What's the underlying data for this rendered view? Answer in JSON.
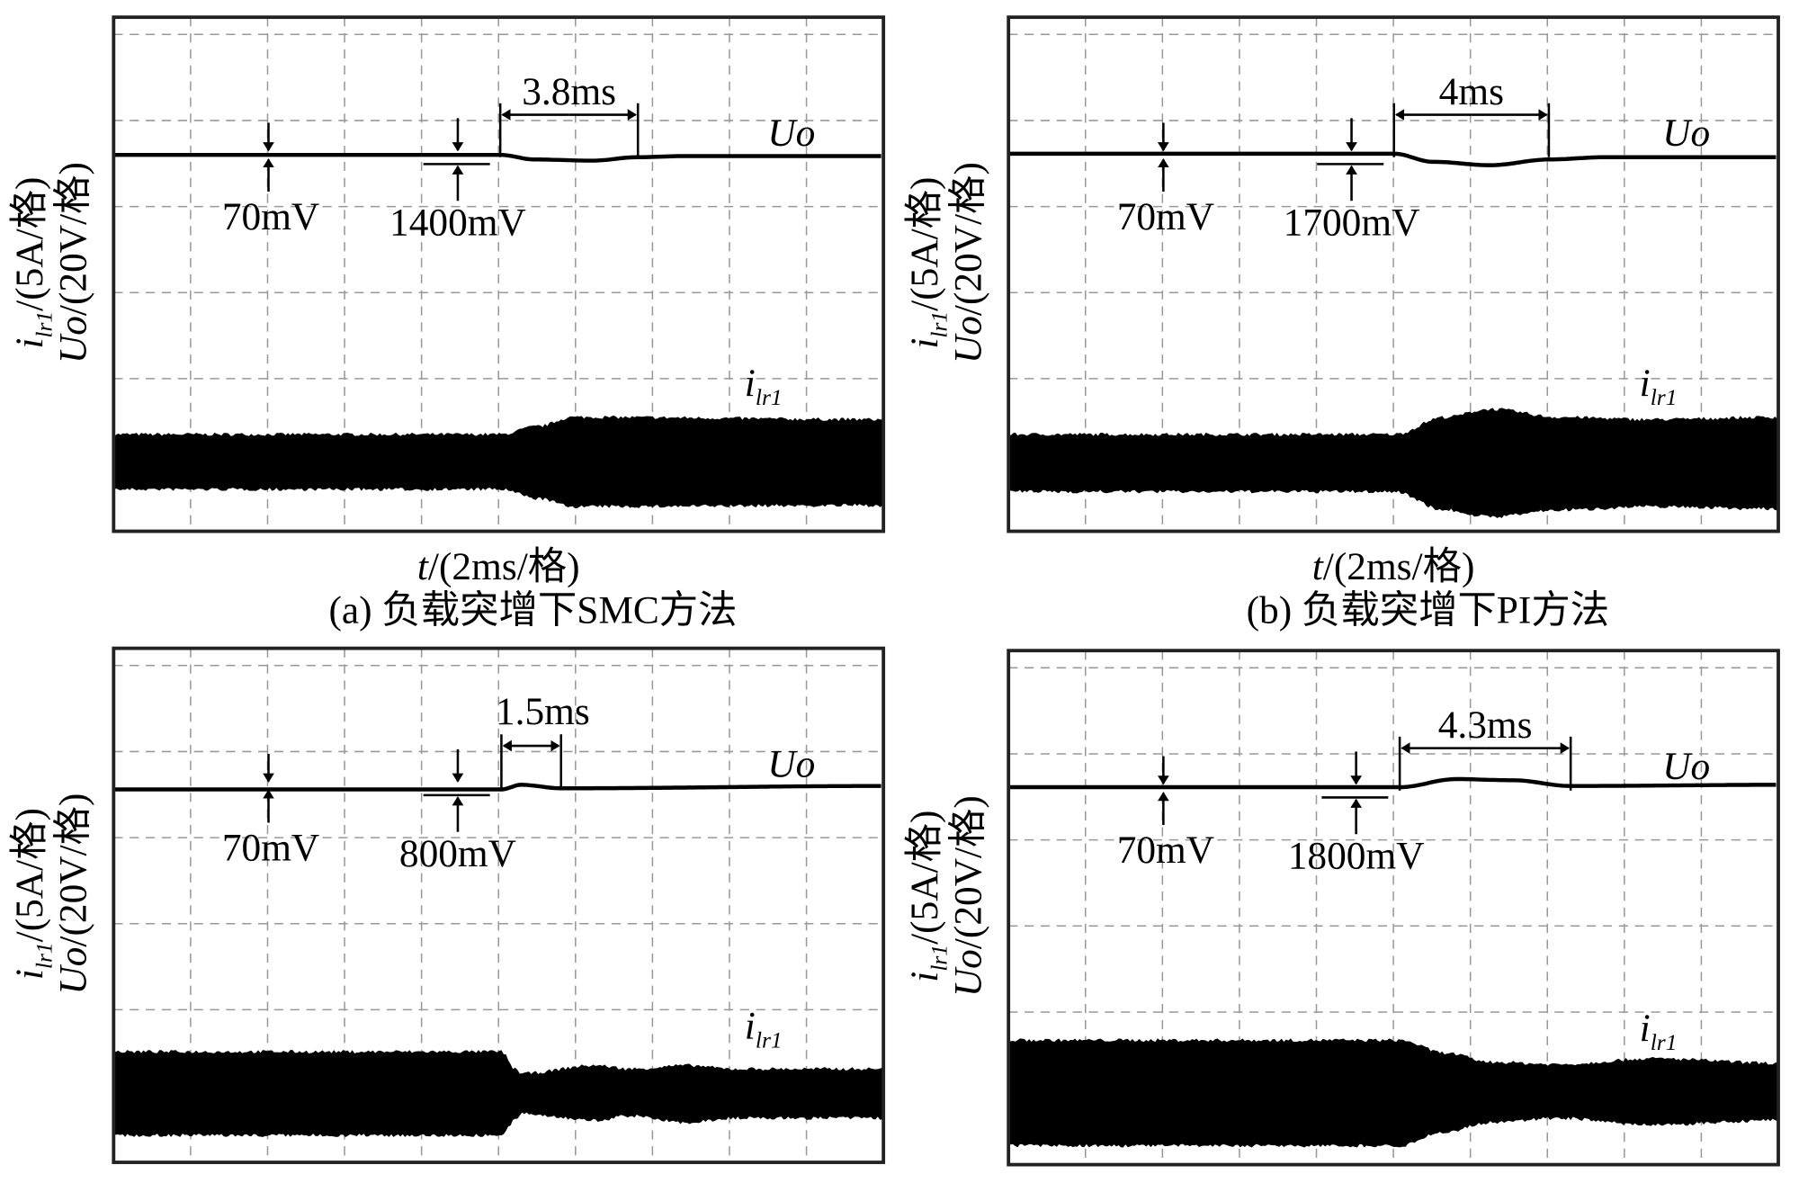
{
  "panels": [
    {
      "ylabel_current": {
        "symbol": "i",
        "subscript": "lr1",
        "unit": "/(5A/格)"
      },
      "ylabel_voltage": {
        "symbol": "Uo",
        "unit": "/(20V/格)"
      },
      "trace_voltage": "Uo",
      "trace_current": {
        "symbol": "i",
        "subscript": "lr1"
      },
      "ripple_label": "70mV",
      "deviation_label": "1400mV",
      "time_label": "3.8ms",
      "xlabel": {
        "symbol": "t",
        "unit": "/(2ms/格)"
      },
      "caption": "(a) 负载突增下SMC方法"
    },
    {
      "ylabel_current": {
        "symbol": "i",
        "subscript": "lr1",
        "unit": "/(5A/格)"
      },
      "ylabel_voltage": {
        "symbol": "Uo",
        "unit": "/(20V/格)"
      },
      "trace_voltage": "Uo",
      "trace_current": {
        "symbol": "i",
        "subscript": "lr1"
      },
      "ripple_label": "70mV",
      "deviation_label": "1700mV",
      "time_label": "4ms",
      "xlabel": {
        "symbol": "t",
        "unit": "/(2ms/格)"
      },
      "caption": "(b) 负载突增下PI方法"
    },
    {
      "ylabel_current": {
        "symbol": "i",
        "subscript": "lr1",
        "unit": "/(5A/格)"
      },
      "ylabel_voltage": {
        "symbol": "Uo",
        "unit": "/(20V/格)"
      },
      "trace_voltage": "Uo",
      "trace_current": {
        "symbol": "i",
        "subscript": "lr1"
      },
      "ripple_label": "70mV",
      "deviation_label": "800mV",
      "time_label": "1.5ms"
    },
    {
      "ylabel_current": {
        "symbol": "i",
        "subscript": "lr1",
        "unit": "/(5A/格)"
      },
      "ylabel_voltage": {
        "symbol": "Uo",
        "unit": "/(20V/格)"
      },
      "trace_voltage": "Uo",
      "trace_current": {
        "symbol": "i",
        "subscript": "lr1"
      },
      "ripple_label": "70mV",
      "deviation_label": "1800mV",
      "time_label": "4.3ms"
    }
  ]
}
